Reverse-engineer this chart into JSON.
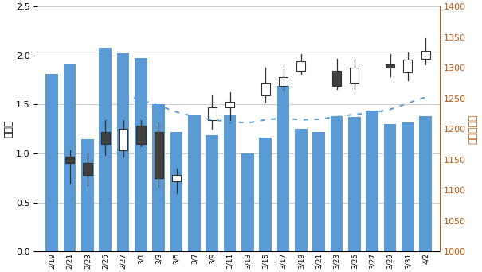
{
  "xtick_labels": [
    "2/19",
    "2/21",
    "2/23",
    "2/25",
    "2/27",
    "3/1",
    "3/3",
    "3/5",
    "3/7",
    "3/9",
    "3/11",
    "3/13",
    "3/15",
    "3/17",
    "3/19",
    "3/21",
    "3/23",
    "3/25",
    "3/27",
    "3/29",
    "3/31",
    "4/2"
  ],
  "bar_dates": [
    "2/19",
    "2/21",
    "2/23",
    "2/25",
    "2/27",
    "3/1",
    "3/3",
    "3/5",
    "3/7",
    "3/9",
    "3/11",
    "3/13",
    "3/15",
    "3/17",
    "3/19",
    "3/21",
    "3/23",
    "3/25",
    "3/27",
    "3/29",
    "3/31",
    "4/2"
  ],
  "bar_heights": [
    1.81,
    1.92,
    1.15,
    2.08,
    2.02,
    1.97,
    1.5,
    1.22,
    1.4,
    1.19,
    1.4,
    1.0,
    1.16,
    1.69,
    1.25,
    1.22,
    1.38,
    1.37,
    1.44,
    1.3,
    1.32,
    1.38
  ],
  "bar_color": "#5B9BD5",
  "candle_dates": [
    "2/21",
    "2/23",
    "2/25",
    "2/27",
    "3/1",
    "3/3",
    "3/5",
    "3/9",
    "3/11",
    "3/15",
    "3/17",
    "3/19",
    "3/23",
    "3/25",
    "3/29",
    "3/31",
    "4/2"
  ],
  "candle_open": [
    1155,
    1145,
    1195,
    1165,
    1205,
    1195,
    1115,
    1215,
    1235,
    1255,
    1270,
    1295,
    1295,
    1275,
    1305,
    1293,
    1315
  ],
  "candle_close": [
    1145,
    1125,
    1175,
    1200,
    1175,
    1120,
    1125,
    1235,
    1245,
    1275,
    1285,
    1310,
    1270,
    1300,
    1300,
    1313,
    1328
  ],
  "candle_high": [
    1165,
    1160,
    1215,
    1215,
    1215,
    1210,
    1135,
    1255,
    1260,
    1300,
    1298,
    1322,
    1315,
    1315,
    1322,
    1325,
    1348
  ],
  "candle_low": [
    1112,
    1108,
    1158,
    1155,
    1172,
    1105,
    1095,
    1200,
    1210,
    1245,
    1263,
    1290,
    1265,
    1265,
    1286,
    1280,
    1306
  ],
  "dotted_x_idx": [
    4,
    5,
    6,
    7,
    8,
    9,
    10,
    11,
    12,
    13,
    14,
    15,
    16,
    17,
    18,
    19,
    20,
    21
  ],
  "dotted_values": [
    1255,
    1248,
    1238,
    1228,
    1220,
    1215,
    1212,
    1210,
    1215,
    1218,
    1215,
    1216,
    1220,
    1224,
    1226,
    1232,
    1242,
    1252
  ],
  "ylim_left": [
    0,
    2.5
  ],
  "ylim_right": [
    1000,
    1400
  ],
  "ylabel_left": "出来高",
  "ylabel_right": "主導株指数",
  "left_yticks": [
    0,
    0.5,
    1.0,
    1.5,
    2.0,
    2.5
  ],
  "right_ytick_vals": [
    1000,
    1050,
    1100,
    1150,
    1200,
    1250,
    1300,
    1350,
    1400
  ],
  "right_ytick_labels": [
    "1000",
    "1050",
    "1100",
    "1150",
    "1200",
    "1250",
    "1300",
    "1350",
    "1400"
  ],
  "grid_color": "#CCCCCC",
  "dotted_color": "#5B9BD5",
  "background_color": "#FFFFFF",
  "right_label_color": "#C05A11",
  "candle_bear_color": "#404040",
  "candle_bull_color": "#FFFFFF",
  "candle_edge_color": "#303030"
}
